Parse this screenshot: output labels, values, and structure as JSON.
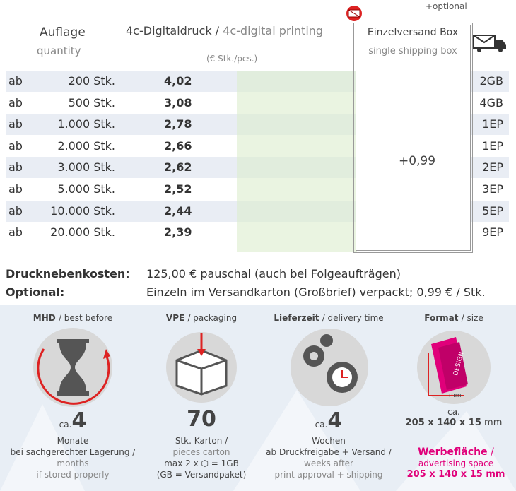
{
  "header": {
    "optional": "+optional",
    "quantity": "Auflage",
    "quantity_en": "quantity",
    "product": "4c-Digitaldruck /",
    "product_en": "4c-digital printing",
    "unit": "(€ Stk./pcs.)",
    "box": "Einzelversand Box",
    "box_en": "single shipping box"
  },
  "table": {
    "rows": [
      [
        "ab",
        "200 Stk.",
        "4,02",
        "2GB"
      ],
      [
        "ab",
        "500 Stk.",
        "3,08",
        "4GB"
      ],
      [
        "ab",
        "1.000 Stk.",
        "2,78",
        "1EP"
      ],
      [
        "ab",
        "2.000 Stk.",
        "2,66",
        "1EP"
      ],
      [
        "ab",
        "3.000 Stk.",
        "2,62",
        "2EP"
      ],
      [
        "ab",
        "5.000 Stk.",
        "2,52",
        "3EP"
      ],
      [
        "ab",
        "10.000 Stk.",
        "2,44",
        "5EP"
      ],
      [
        "ab",
        "20.000 Stk.",
        "2,39",
        "9EP"
      ]
    ],
    "box_price": "+0,99"
  },
  "costs": [
    {
      "label": "Drucknebenkosten:",
      "text": "125,00 € pauschal (auch bei Folgeaufträgen)"
    },
    {
      "label": "Optional:",
      "text": "Einzeln im Versandkarton (Großbrief) verpackt; 0,99 € / Stk."
    }
  ],
  "info": {
    "shelf": {
      "title": "MHD",
      "title_en": "/ best before",
      "prefix": "ca.",
      "number": "4",
      "unit": "Monate",
      "note": "bei sachgerechter Lagerung /",
      "unit_en": "months",
      "note_en": "if stored properly"
    },
    "packaging": {
      "title": "VPE",
      "title_en": "/ packaging",
      "number": "70",
      "unit": "Stk. Karton /",
      "unit_en": "pieces carton",
      "max": "max 2 x",
      "max_end": "= 1GB",
      "legend": "(GB = Versandpaket)"
    },
    "delivery": {
      "title": "Lieferzeit",
      "title_en": "/ delivery time",
      "prefix": "ca.",
      "number": "4",
      "unit": "Wochen",
      "note": "ab Druckfreigabe + Versand /",
      "unit_en": "weeks after",
      "note_en": "print approval + shipping"
    },
    "format": {
      "title": "Format",
      "title_en": "/ size",
      "mm_icon": "mm",
      "design": "DESIGN",
      "prefix": "ca.",
      "size": "205 x 140 x 15",
      "size_unit": "mm",
      "ad": "Werbefläche",
      "ad_sep": "/",
      "ad_en": "advertising space",
      "ad_size": "205 x 140 x 15 mm"
    }
  }
}
